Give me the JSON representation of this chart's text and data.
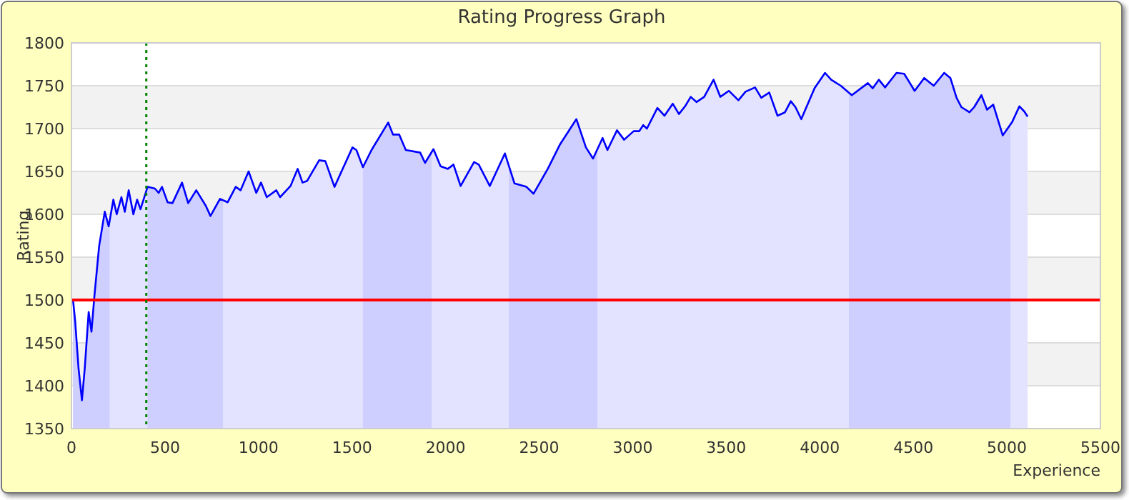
{
  "chart_data": {
    "type": "area",
    "title": "Rating Progress Graph",
    "xlabel": "Experience",
    "ylabel": "Rating",
    "xlim": [
      0,
      5500
    ],
    "xticks": [
      0,
      500,
      1000,
      1500,
      2000,
      2500,
      3000,
      3500,
      4000,
      4500,
      5000,
      5500
    ],
    "ylim": [
      1350,
      1800
    ],
    "yticks": [
      1350,
      1400,
      1450,
      1500,
      1550,
      1600,
      1650,
      1700,
      1750,
      1800
    ],
    "grid": "y",
    "series": [
      {
        "color": "#0000ff",
        "x": [
          8,
          20,
          38,
          56,
          71,
          92,
          107,
          122,
          148,
          178,
          199,
          224,
          242,
          267,
          285,
          306,
          331,
          351,
          369,
          407,
          446,
          466,
          484,
          514,
          540,
          591,
          624,
          667,
          718,
          743,
          794,
          835,
          878,
          904,
          947,
          988,
          1013,
          1044,
          1095,
          1115,
          1171,
          1209,
          1235,
          1260,
          1324,
          1357,
          1406,
          1502,
          1523,
          1558,
          1604,
          1693,
          1719,
          1752,
          1787,
          1864,
          1890,
          1935,
          1973,
          2012,
          2042,
          2080,
          2152,
          2177,
          2236,
          2317,
          2368,
          2432,
          2470,
          2546,
          2610,
          2699,
          2750,
          2788,
          2839,
          2865,
          2916,
          2954,
          3005,
          3035,
          3056,
          3076,
          3132,
          3170,
          3214,
          3247,
          3280,
          3310,
          3341,
          3382,
          3432,
          3468,
          3514,
          3565,
          3603,
          3654,
          3687,
          3730,
          3774,
          3814,
          3845,
          3870,
          3901,
          3972,
          4028,
          4061,
          4112,
          4171,
          4257,
          4283,
          4316,
          4349,
          4410,
          4451,
          4507,
          4558,
          4609,
          4665,
          4698,
          4731,
          4757,
          4800,
          4825,
          4864,
          4894,
          4927,
          4978,
          5029,
          5067,
          5093,
          5111
        ],
        "values": [
          1501,
          1475,
          1420,
          1383,
          1420,
          1486,
          1463,
          1503,
          1563,
          1603,
          1586,
          1617,
          1600,
          1620,
          1603,
          1628,
          1600,
          1617,
          1606,
          1632,
          1630,
          1625,
          1632,
          1614,
          1613,
          1637,
          1613,
          1628,
          1610,
          1598,
          1618,
          1614,
          1632,
          1628,
          1650,
          1625,
          1637,
          1620,
          1628,
          1620,
          1633,
          1653,
          1637,
          1639,
          1663,
          1662,
          1632,
          1678,
          1675,
          1655,
          1675,
          1707,
          1693,
          1693,
          1675,
          1672,
          1660,
          1676,
          1656,
          1653,
          1658,
          1633,
          1661,
          1658,
          1633,
          1671,
          1636,
          1632,
          1624,
          1653,
          1681,
          1711,
          1678,
          1665,
          1689,
          1675,
          1698,
          1687,
          1697,
          1697,
          1704,
          1700,
          1724,
          1715,
          1729,
          1717,
          1726,
          1737,
          1731,
          1737,
          1757,
          1737,
          1744,
          1733,
          1743,
          1748,
          1736,
          1742,
          1715,
          1719,
          1732,
          1725,
          1711,
          1747,
          1765,
          1757,
          1750,
          1739,
          1753,
          1747,
          1757,
          1748,
          1765,
          1764,
          1744,
          1759,
          1750,
          1765,
          1759,
          1736,
          1725,
          1719,
          1725,
          1739,
          1722,
          1728,
          1692,
          1708,
          1726,
          1720,
          1714
        ]
      }
    ],
    "ref_lines": [
      {
        "axis": "y",
        "value": 1500,
        "color": "#ff0000",
        "line_style": "solid"
      },
      {
        "axis": "x",
        "value": 400,
        "color": "#008000",
        "line_style": "dotted"
      }
    ],
    "bands": [
      {
        "axis": "x",
        "from": 0,
        "to": 204,
        "color": "#e8e8ff"
      },
      {
        "axis": "x",
        "from": 407,
        "to": 810,
        "color": "#e8e8ff"
      },
      {
        "axis": "x",
        "from": 1558,
        "to": 1925,
        "color": "#e8e8ff"
      },
      {
        "axis": "x",
        "from": 2338,
        "to": 2811,
        "color": "#e8e8ff"
      },
      {
        "axis": "x",
        "from": 4156,
        "to": 5019,
        "color": "#e8e8ff"
      }
    ]
  }
}
